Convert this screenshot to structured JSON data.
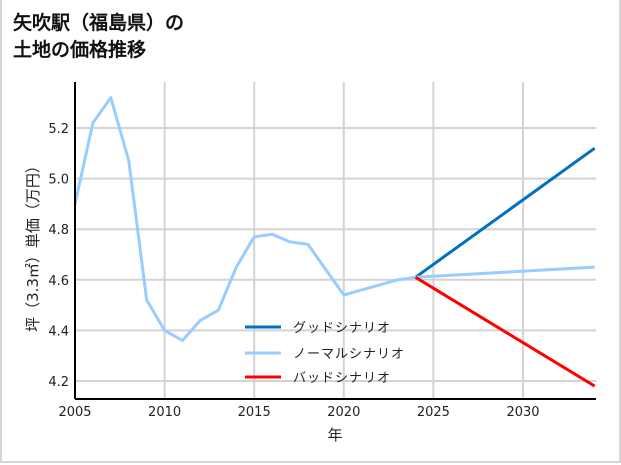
{
  "title_line1": "矢吹駅（福島県）の",
  "title_line2": "土地の価格推移",
  "chart_data": {
    "type": "line",
    "title": "矢吹駅（福島県）の土地の価格推移",
    "xlabel": "年",
    "ylabel": "坪（3.3㎡）単価（万円）",
    "xlim": [
      2005,
      2034
    ],
    "ylim": [
      4.13,
      5.36
    ],
    "xticks": [
      2005,
      2010,
      2015,
      2020,
      2025,
      2030
    ],
    "yticks": [
      4.2,
      4.4,
      4.6,
      4.8,
      5.0,
      5.2
    ],
    "ytick_labels": [
      "4.2",
      "4.4",
      "4.6",
      "4.8",
      "5.0",
      "5.2"
    ],
    "grid": true,
    "legend_position": "lower center",
    "series": [
      {
        "name": "グッドシナリオ",
        "color": "#0070C0",
        "x": [
          2024,
          2034
        ],
        "values": [
          4.61,
          5.12
        ]
      },
      {
        "name": "ノーマルシナリオ",
        "color": "#99CCFF",
        "x": [
          2005,
          2006,
          2007,
          2008,
          2009,
          2010,
          2011,
          2012,
          2013,
          2014,
          2015,
          2016,
          2017,
          2018,
          2019,
          2020,
          2021,
          2022,
          2023,
          2024,
          2034
        ],
        "values": [
          4.9,
          5.22,
          5.32,
          5.07,
          4.52,
          4.4,
          4.36,
          4.44,
          4.48,
          4.65,
          4.77,
          4.78,
          4.75,
          4.74,
          4.64,
          4.54,
          4.56,
          4.58,
          4.6,
          4.61,
          4.65
        ]
      },
      {
        "name": "バッドシナリオ",
        "color": "#FF0000",
        "x": [
          2024,
          2034
        ],
        "values": [
          4.61,
          4.18
        ]
      }
    ]
  }
}
